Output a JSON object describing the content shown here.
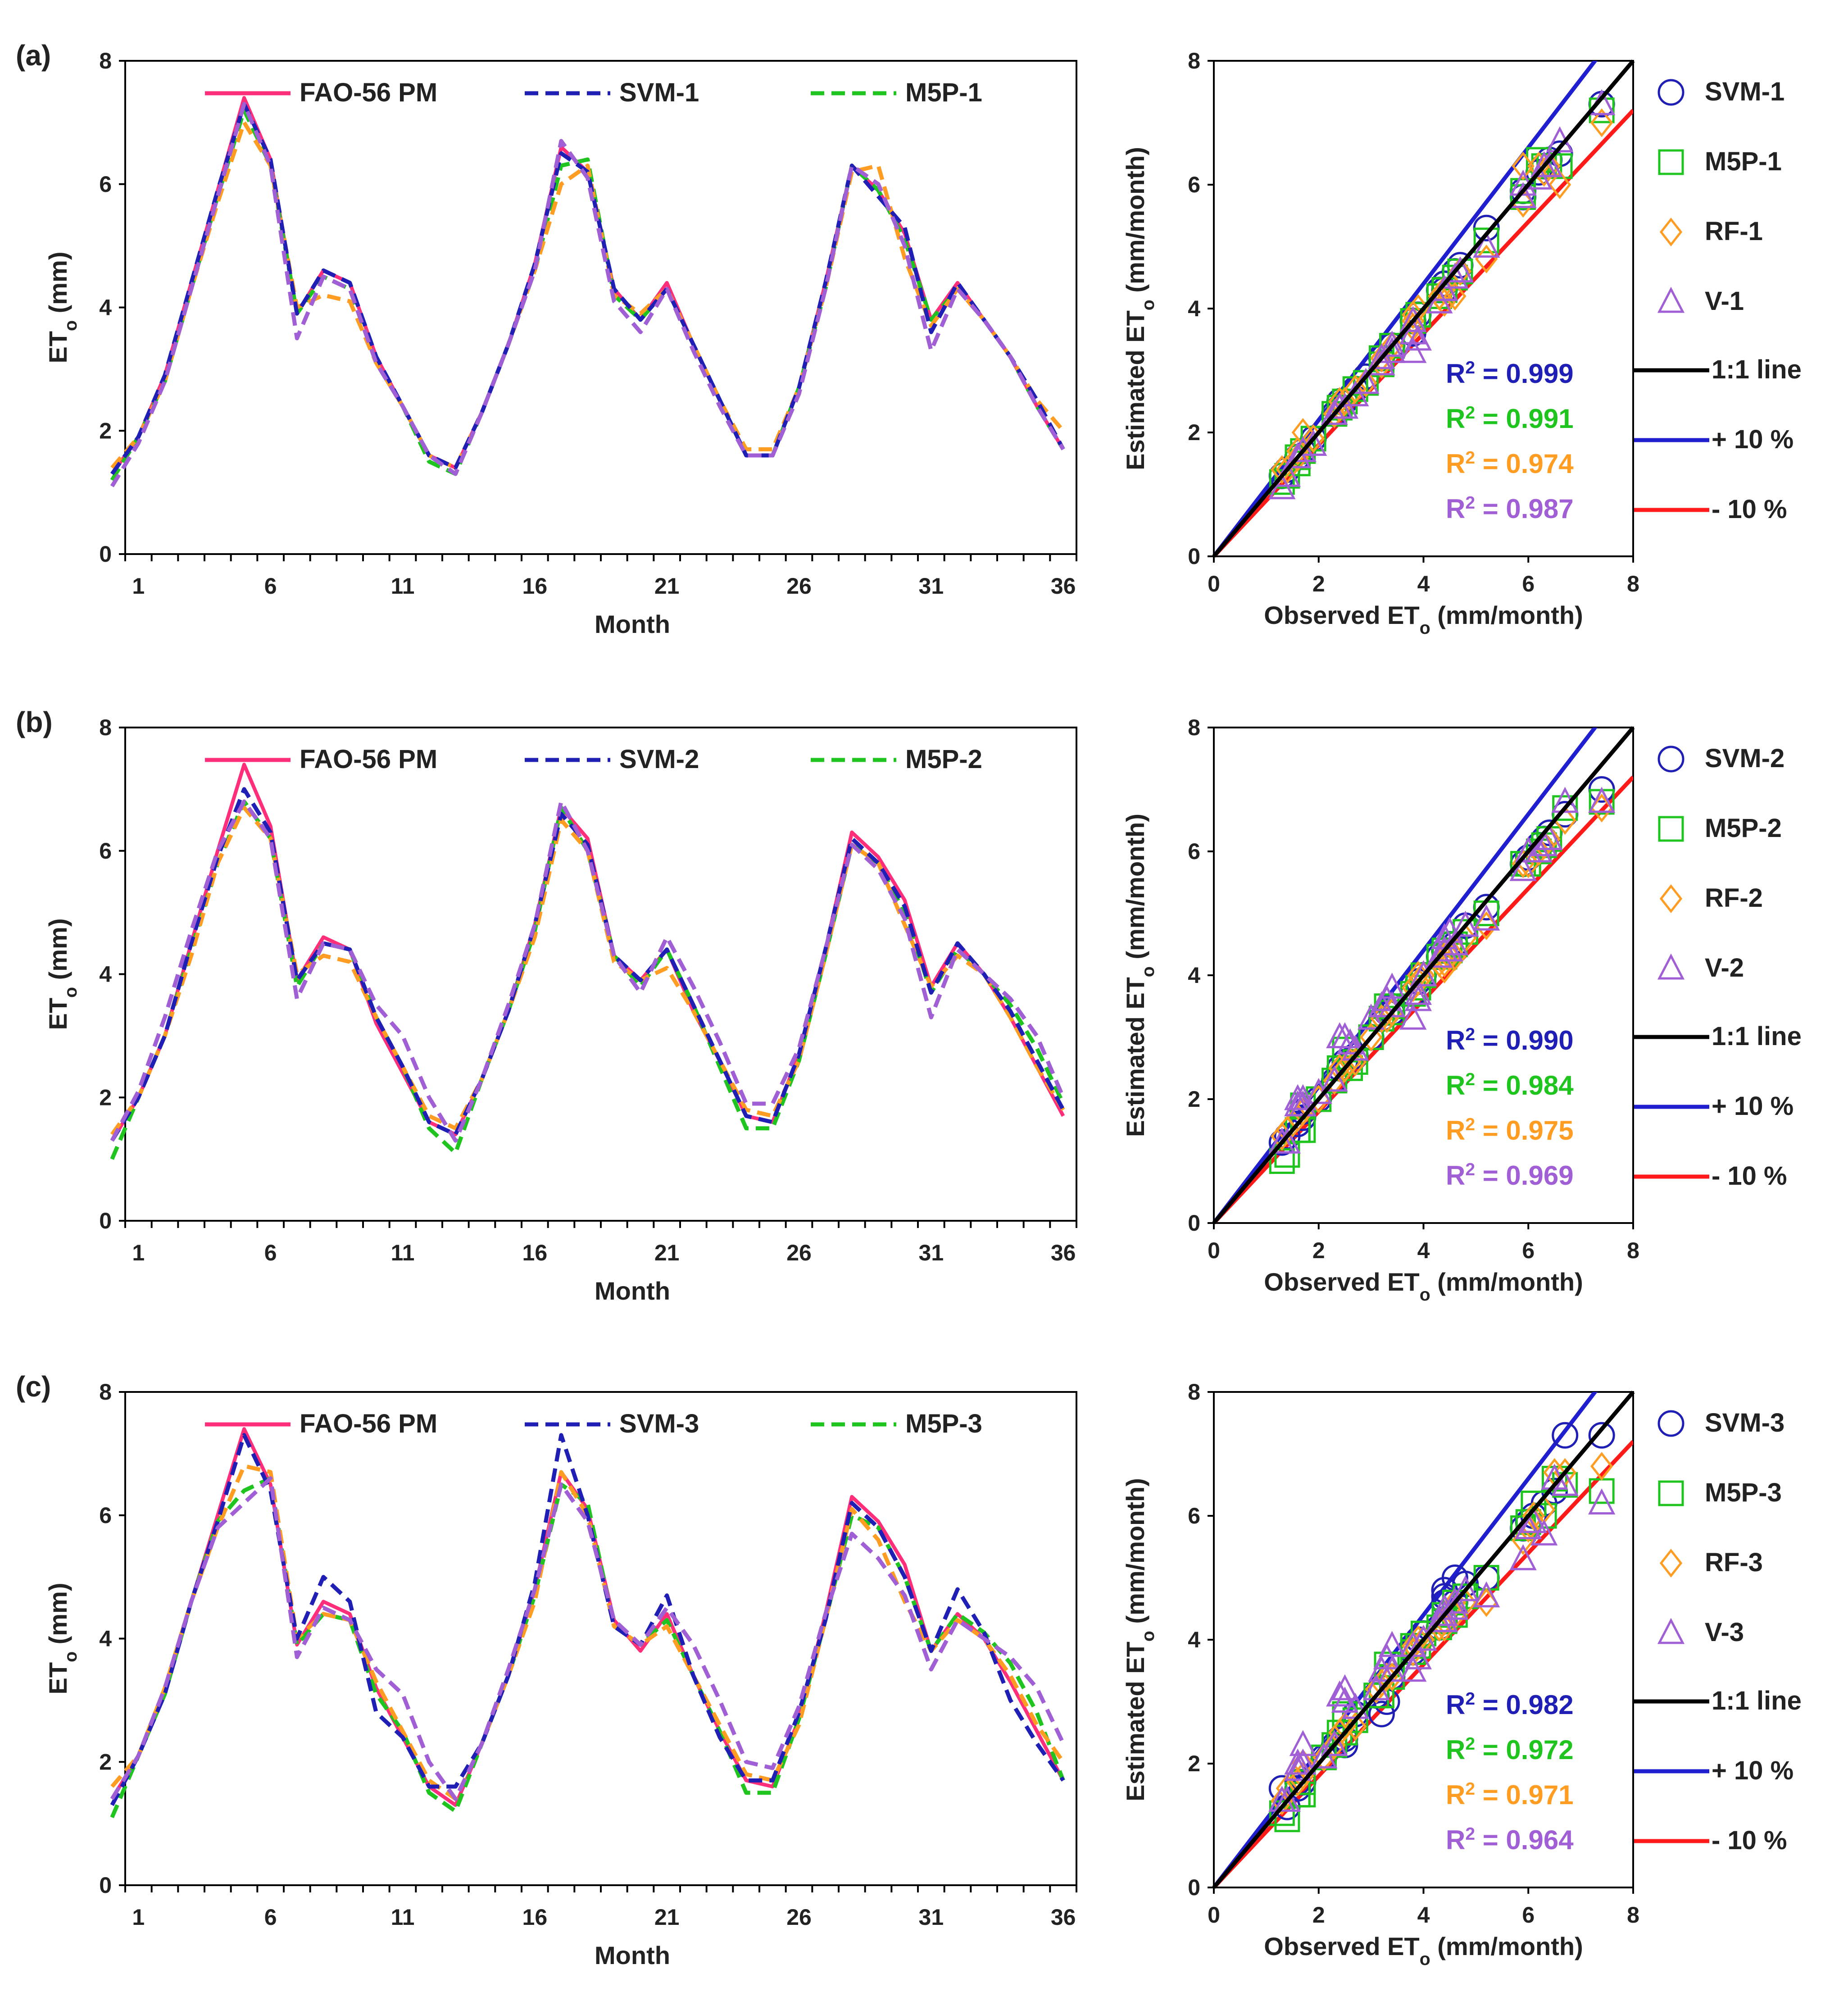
{
  "colors": {
    "fao": "#ff2e7a",
    "svm": "#1f1fb5",
    "m5p": "#1fc41f",
    "rf": "#ff9d23",
    "v": "#a15fd6",
    "one_to_one": "#000000",
    "plus10": "#1f1fd0",
    "minus10": "#ff1a1a"
  },
  "chart_data": [
    {
      "panel": "(a)",
      "type": "line",
      "xlabel": "Month",
      "ylabel": "ETo (mm)",
      "ylim": [
        0,
        8
      ],
      "xlim": [
        1,
        36
      ],
      "yticks": [
        0,
        2,
        4,
        6,
        8
      ],
      "xtick_labels": [
        1,
        6,
        11,
        16,
        21,
        26,
        31,
        36
      ],
      "legend": [
        "FAO-56 PM",
        "SVM-1",
        "M5P-1"
      ],
      "series": [
        {
          "name": "FAO-56 PM",
          "color_key": "fao",
          "style": "solid",
          "values": [
            1.3,
            1.9,
            2.9,
            4.4,
            5.9,
            7.4,
            6.4,
            3.9,
            4.6,
            4.4,
            3.2,
            2.4,
            1.6,
            1.4,
            2.3,
            3.4,
            4.7,
            6.6,
            6.2,
            4.3,
            3.8,
            4.4,
            3.4,
            2.5,
            1.6,
            1.6,
            2.7,
            4.4,
            6.3,
            5.9,
            5.2,
            3.8,
            4.4,
            3.8,
            3.2,
            2.4,
            1.7
          ]
        },
        {
          "name": "SVM-1",
          "color_key": "svm",
          "style": "dashed",
          "values": [
            1.3,
            1.9,
            2.9,
            4.4,
            5.9,
            7.3,
            6.4,
            3.9,
            4.6,
            4.4,
            3.2,
            2.4,
            1.6,
            1.4,
            2.3,
            3.4,
            4.7,
            6.5,
            6.2,
            4.3,
            3.8,
            4.3,
            3.4,
            2.5,
            1.6,
            1.6,
            2.7,
            4.4,
            6.3,
            5.8,
            5.3,
            3.6,
            4.4,
            3.8,
            3.2,
            2.5,
            1.7
          ]
        },
        {
          "name": "M5P-1",
          "color_key": "m5p",
          "style": "dashed",
          "values": [
            1.2,
            1.9,
            2.8,
            4.3,
            5.8,
            7.2,
            6.3,
            3.9,
            4.5,
            4.3,
            3.1,
            2.4,
            1.5,
            1.3,
            2.3,
            3.4,
            4.6,
            6.3,
            6.4,
            4.2,
            3.8,
            4.3,
            3.4,
            2.5,
            1.6,
            1.6,
            2.7,
            4.3,
            6.3,
            5.9,
            5.1,
            3.8,
            4.3,
            3.8,
            3.2,
            2.4,
            1.7
          ]
        },
        {
          "name": "RF-1",
          "color_key": "rf",
          "style": "dashed",
          "values": [
            1.4,
            1.9,
            2.8,
            4.3,
            5.7,
            7.0,
            6.3,
            4.0,
            4.2,
            4.1,
            3.1,
            2.4,
            1.6,
            1.4,
            2.3,
            3.4,
            4.6,
            6.0,
            6.3,
            4.2,
            3.9,
            4.3,
            3.4,
            2.5,
            1.7,
            1.7,
            2.7,
            4.3,
            6.2,
            6.3,
            4.8,
            3.7,
            4.3,
            3.8,
            3.2,
            2.5,
            2.0
          ]
        },
        {
          "name": "V-1",
          "color_key": "v",
          "style": "dashed",
          "values": [
            1.1,
            1.8,
            2.8,
            4.3,
            5.8,
            7.3,
            6.3,
            3.5,
            4.5,
            4.3,
            3.1,
            2.4,
            1.6,
            1.3,
            2.3,
            3.4,
            4.6,
            6.7,
            6.1,
            4.1,
            3.6,
            4.3,
            3.3,
            2.4,
            1.6,
            1.6,
            2.6,
            4.3,
            6.3,
            6.0,
            5.0,
            3.3,
            4.3,
            3.8,
            3.2,
            2.4,
            1.7
          ]
        }
      ]
    },
    {
      "panel": "(a)",
      "type": "scatter",
      "xlabel": "Observed ETo (mm/month)",
      "ylabel": "Estimated ETo (mm/month)",
      "xlim": [
        0,
        8
      ],
      "ylim": [
        0,
        8
      ],
      "ticks": [
        0,
        2,
        4,
        6,
        8
      ],
      "legend": [
        "SVM-1",
        "M5P-1",
        "RF-1",
        "V-1",
        "1:1 line",
        "+ 10 %",
        "- 10 %"
      ],
      "r2": [
        {
          "label": "R² = 0.999",
          "color_key": "svm"
        },
        {
          "label": "R² = 0.991",
          "color_key": "m5p"
        },
        {
          "label": "R² = 0.974",
          "color_key": "rf"
        },
        {
          "label": "R² = 0.987",
          "color_key": "v"
        }
      ],
      "series_keys": [
        "svm",
        "m5p",
        "rf",
        "v"
      ],
      "markers": [
        "circle",
        "square",
        "diamond",
        "triangle"
      ],
      "observed": [
        1.3,
        1.9,
        2.9,
        4.4,
        5.9,
        7.4,
        6.4,
        3.9,
        4.6,
        4.4,
        3.2,
        2.4,
        1.6,
        1.4,
        2.3,
        3.4,
        4.7,
        6.6,
        6.2,
        4.3,
        3.8,
        4.4,
        3.4,
        2.5,
        1.6,
        1.6,
        2.7,
        4.4,
        6.3,
        5.9,
        5.2,
        3.8,
        4.4,
        3.8,
        3.2,
        2.4,
        1.7
      ]
    },
    {
      "panel": "(b)",
      "type": "line",
      "xlabel": "Month",
      "ylabel": "ETo (mm)",
      "ylim": [
        0,
        8
      ],
      "xlim": [
        1,
        36
      ],
      "yticks": [
        0,
        2,
        4,
        6,
        8
      ],
      "xtick_labels": [
        1,
        6,
        11,
        16,
        21,
        26,
        31,
        36
      ],
      "legend": [
        "FAO-56 PM",
        "SVM-2",
        "M5P-2"
      ],
      "series": [
        {
          "name": "FAO-56 PM",
          "color_key": "fao",
          "style": "solid",
          "values": [
            1.3,
            2.0,
            3.0,
            4.5,
            6.0,
            7.4,
            6.4,
            3.9,
            4.6,
            4.4,
            3.2,
            2.4,
            1.6,
            1.4,
            2.3,
            3.4,
            4.8,
            6.7,
            6.2,
            4.3,
            3.9,
            4.4,
            3.4,
            2.6,
            1.7,
            1.6,
            2.7,
            4.4,
            6.3,
            5.9,
            5.2,
            3.8,
            4.5,
            4.0,
            3.3,
            2.5,
            1.7
          ]
        },
        {
          "name": "SVM-2",
          "color_key": "svm",
          "style": "dashed",
          "values": [
            1.3,
            2.0,
            3.0,
            4.5,
            5.9,
            7.0,
            6.3,
            3.9,
            4.5,
            4.4,
            3.3,
            2.5,
            1.6,
            1.4,
            2.3,
            3.4,
            4.8,
            6.6,
            6.1,
            4.3,
            3.9,
            4.4,
            3.5,
            2.6,
            1.7,
            1.6,
            2.7,
            4.4,
            6.2,
            5.8,
            5.1,
            3.7,
            4.5,
            4.0,
            3.4,
            2.6,
            1.8
          ]
        },
        {
          "name": "M5P-2",
          "color_key": "m5p",
          "style": "dashed",
          "values": [
            1.0,
            2.0,
            3.0,
            4.4,
            5.8,
            6.8,
            6.2,
            3.8,
            4.5,
            4.4,
            3.3,
            2.5,
            1.5,
            1.1,
            2.3,
            3.4,
            4.7,
            6.7,
            6.0,
            4.3,
            3.8,
            4.4,
            3.5,
            2.5,
            1.5,
            1.5,
            2.6,
            4.3,
            6.1,
            5.8,
            5.0,
            3.7,
            4.4,
            4.0,
            3.5,
            2.8,
            1.9
          ]
        },
        {
          "name": "RF-2",
          "color_key": "rf",
          "style": "dashed",
          "values": [
            1.4,
            2.0,
            3.0,
            4.3,
            5.8,
            6.7,
            6.2,
            4.0,
            4.3,
            4.2,
            3.3,
            2.5,
            1.7,
            1.5,
            2.3,
            3.4,
            4.6,
            6.5,
            6.0,
            4.2,
            3.9,
            4.1,
            3.4,
            2.6,
            1.8,
            1.7,
            2.6,
            4.3,
            6.1,
            5.8,
            4.8,
            3.8,
            4.3,
            4.0,
            3.3,
            2.5,
            1.8
          ]
        },
        {
          "name": "V-2",
          "color_key": "v",
          "style": "dashed",
          "values": [
            1.3,
            2.1,
            3.3,
            4.7,
            6.0,
            6.8,
            6.2,
            3.6,
            4.5,
            4.4,
            3.5,
            3.0,
            2.0,
            1.3,
            2.3,
            3.5,
            4.8,
            6.8,
            6.0,
            4.3,
            3.7,
            4.6,
            3.8,
            2.9,
            1.9,
            1.9,
            2.8,
            4.4,
            6.1,
            5.7,
            4.9,
            3.3,
            4.4,
            4.0,
            3.6,
            3.0,
            2.0
          ]
        }
      ]
    },
    {
      "panel": "(b)",
      "type": "scatter",
      "xlabel": "Observed ETo (mm/month)",
      "ylabel": "Estimated ETo (mm/month)",
      "xlim": [
        0,
        8
      ],
      "ylim": [
        0,
        8
      ],
      "ticks": [
        0,
        2,
        4,
        6,
        8
      ],
      "legend": [
        "SVM-2",
        "M5P-2",
        "RF-2",
        "V-2",
        "1:1 line",
        "+ 10 %",
        "- 10 %"
      ],
      "r2": [
        {
          "label": "R² = 0.990",
          "color_key": "svm"
        },
        {
          "label": "R² = 0.984",
          "color_key": "m5p"
        },
        {
          "label": "R² = 0.975",
          "color_key": "rf"
        },
        {
          "label": "R² = 0.969",
          "color_key": "v"
        }
      ],
      "series_keys": [
        "svm",
        "m5p",
        "rf",
        "v"
      ],
      "markers": [
        "circle",
        "square",
        "diamond",
        "triangle"
      ],
      "observed": [
        1.3,
        2.0,
        3.0,
        4.5,
        6.0,
        7.4,
        6.4,
        3.9,
        4.6,
        4.4,
        3.2,
        2.4,
        1.6,
        1.4,
        2.3,
        3.4,
        4.8,
        6.7,
        6.2,
        4.3,
        3.9,
        4.4,
        3.4,
        2.6,
        1.7,
        1.6,
        2.7,
        4.4,
        6.3,
        5.9,
        5.2,
        3.8,
        4.5,
        4.0,
        3.3,
        2.5,
        1.7
      ]
    },
    {
      "panel": "(c)",
      "type": "line",
      "xlabel": "Month",
      "ylabel": "ETo (mm)",
      "ylim": [
        0,
        8
      ],
      "xlim": [
        1,
        36
      ],
      "yticks": [
        0,
        2,
        4,
        6,
        8
      ],
      "xtick_labels": [
        1,
        6,
        11,
        16,
        21,
        26,
        31,
        36
      ],
      "legend": [
        "FAO-56 PM",
        "SVM-3",
        "M5P-3"
      ],
      "series": [
        {
          "name": "FAO-56 PM",
          "color_key": "fao",
          "style": "solid",
          "values": [
            1.4,
            2.1,
            3.1,
            4.6,
            6.0,
            7.4,
            6.5,
            3.9,
            4.6,
            4.4,
            3.2,
            2.4,
            1.6,
            1.3,
            2.3,
            3.4,
            4.8,
            6.7,
            6.1,
            4.3,
            3.8,
            4.4,
            3.4,
            2.5,
            1.7,
            1.6,
            2.7,
            4.4,
            6.3,
            5.9,
            5.2,
            3.8,
            4.4,
            4.0,
            3.3,
            2.5,
            1.7
          ]
        },
        {
          "name": "SVM-3",
          "color_key": "svm",
          "style": "dashed",
          "values": [
            1.3,
            2.1,
            3.1,
            4.6,
            5.9,
            7.3,
            6.4,
            4.0,
            5.0,
            4.6,
            2.8,
            2.4,
            1.6,
            1.6,
            2.3,
            3.4,
            4.9,
            7.3,
            6.0,
            4.2,
            3.9,
            4.7,
            3.4,
            2.4,
            1.7,
            1.7,
            2.8,
            4.3,
            6.2,
            5.8,
            5.0,
            3.8,
            4.8,
            4.1,
            3.0,
            2.3,
            1.7
          ]
        },
        {
          "name": "M5P-3",
          "color_key": "m5p",
          "style": "dashed",
          "values": [
            1.1,
            2.1,
            3.1,
            4.6,
            5.9,
            6.4,
            6.6,
            3.9,
            4.4,
            4.3,
            3.1,
            2.5,
            1.5,
            1.2,
            2.3,
            3.4,
            4.7,
            6.5,
            6.2,
            4.2,
            3.9,
            4.3,
            3.4,
            2.5,
            1.5,
            1.5,
            2.7,
            4.3,
            6.0,
            5.8,
            5.0,
            3.8,
            4.4,
            4.1,
            3.6,
            2.8,
            1.7
          ]
        },
        {
          "name": "RF-3",
          "color_key": "rf",
          "style": "dashed",
          "values": [
            1.6,
            2.1,
            3.2,
            4.6,
            5.8,
            6.8,
            6.7,
            4.0,
            4.4,
            4.3,
            3.3,
            2.5,
            1.7,
            1.4,
            2.3,
            3.4,
            4.6,
            6.7,
            6.0,
            4.2,
            3.9,
            4.2,
            3.4,
            2.6,
            1.8,
            1.7,
            2.6,
            4.3,
            6.1,
            5.6,
            4.6,
            3.8,
            4.3,
            4.0,
            3.4,
            2.6,
            2.0
          ]
        },
        {
          "name": "V-3",
          "color_key": "v",
          "style": "dashed",
          "values": [
            1.4,
            2.1,
            3.2,
            4.6,
            5.8,
            6.2,
            6.6,
            3.7,
            4.5,
            4.3,
            3.5,
            3.1,
            2.0,
            1.4,
            2.3,
            3.5,
            4.8,
            6.5,
            5.9,
            4.3,
            3.9,
            4.5,
            3.9,
            3.0,
            2.0,
            1.9,
            2.9,
            4.4,
            5.7,
            5.3,
            4.7,
            3.5,
            4.3,
            4.0,
            3.7,
            3.2,
            2.3
          ]
        }
      ]
    },
    {
      "panel": "(c)",
      "type": "scatter",
      "xlabel": "Observed ETo (mm/month)",
      "ylabel": "Estimated ETo (mm/month)",
      "xlim": [
        0,
        8
      ],
      "ylim": [
        0,
        8
      ],
      "ticks": [
        0,
        2,
        4,
        6,
        8
      ],
      "legend": [
        "SVM-3",
        "M5P-3",
        "RF-3",
        "V-3",
        "1:1 line",
        "+ 10 %",
        "- 10 %"
      ],
      "r2": [
        {
          "label": "R² = 0.982",
          "color_key": "svm"
        },
        {
          "label": "R² = 0.972",
          "color_key": "m5p"
        },
        {
          "label": "R² = 0.971",
          "color_key": "rf"
        },
        {
          "label": "R² = 0.964",
          "color_key": "v"
        }
      ],
      "series_keys": [
        "svm",
        "m5p",
        "rf",
        "v"
      ],
      "markers": [
        "circle",
        "square",
        "diamond",
        "triangle"
      ],
      "observed": [
        1.4,
        2.1,
        3.1,
        4.6,
        6.0,
        7.4,
        6.5,
        3.9,
        4.6,
        4.4,
        3.2,
        2.4,
        1.6,
        1.3,
        2.3,
        3.4,
        4.8,
        6.7,
        6.1,
        4.3,
        3.8,
        4.4,
        3.4,
        2.5,
        1.7,
        1.6,
        2.7,
        4.4,
        6.3,
        5.9,
        5.2,
        3.8,
        4.4,
        4.0,
        3.3,
        2.5,
        1.7
      ]
    }
  ]
}
